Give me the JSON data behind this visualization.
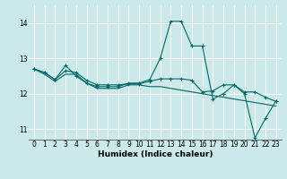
{
  "xlabel": "Humidex (Indice chaleur)",
  "ylabel": "",
  "xlim": [
    -0.5,
    23.5
  ],
  "ylim": [
    10.7,
    14.5
  ],
  "yticks": [
    11,
    12,
    13,
    14
  ],
  "xticks": [
    0,
    1,
    2,
    3,
    4,
    5,
    6,
    7,
    8,
    9,
    10,
    11,
    12,
    13,
    14,
    15,
    16,
    17,
    18,
    19,
    20,
    21,
    22,
    23
  ],
  "bg_color": "#cce9e9",
  "line_color": "#006666",
  "grid_color": "#ffffff",
  "series": [
    [
      12.7,
      12.6,
      12.4,
      12.8,
      12.5,
      12.3,
      12.2,
      12.2,
      12.2,
      12.3,
      12.3,
      12.4,
      13.0,
      14.05,
      14.05,
      13.35,
      13.35,
      11.85,
      12.0,
      12.25,
      12.0,
      10.75,
      11.3,
      11.8
    ],
    [
      12.7,
      12.6,
      12.4,
      12.65,
      12.6,
      12.38,
      12.25,
      12.25,
      12.25,
      12.28,
      12.28,
      12.35,
      12.42,
      12.42,
      12.42,
      12.38,
      12.05,
      12.08,
      12.25,
      12.25,
      12.05,
      12.05,
      11.9,
      11.78
    ],
    [
      12.7,
      12.55,
      12.35,
      12.55,
      12.55,
      12.3,
      12.15,
      12.15,
      12.15,
      12.25,
      12.25,
      12.2,
      12.2,
      12.15,
      12.1,
      12.05,
      12.0,
      11.95,
      11.9,
      11.85,
      11.8,
      11.75,
      11.7,
      11.65
    ]
  ]
}
